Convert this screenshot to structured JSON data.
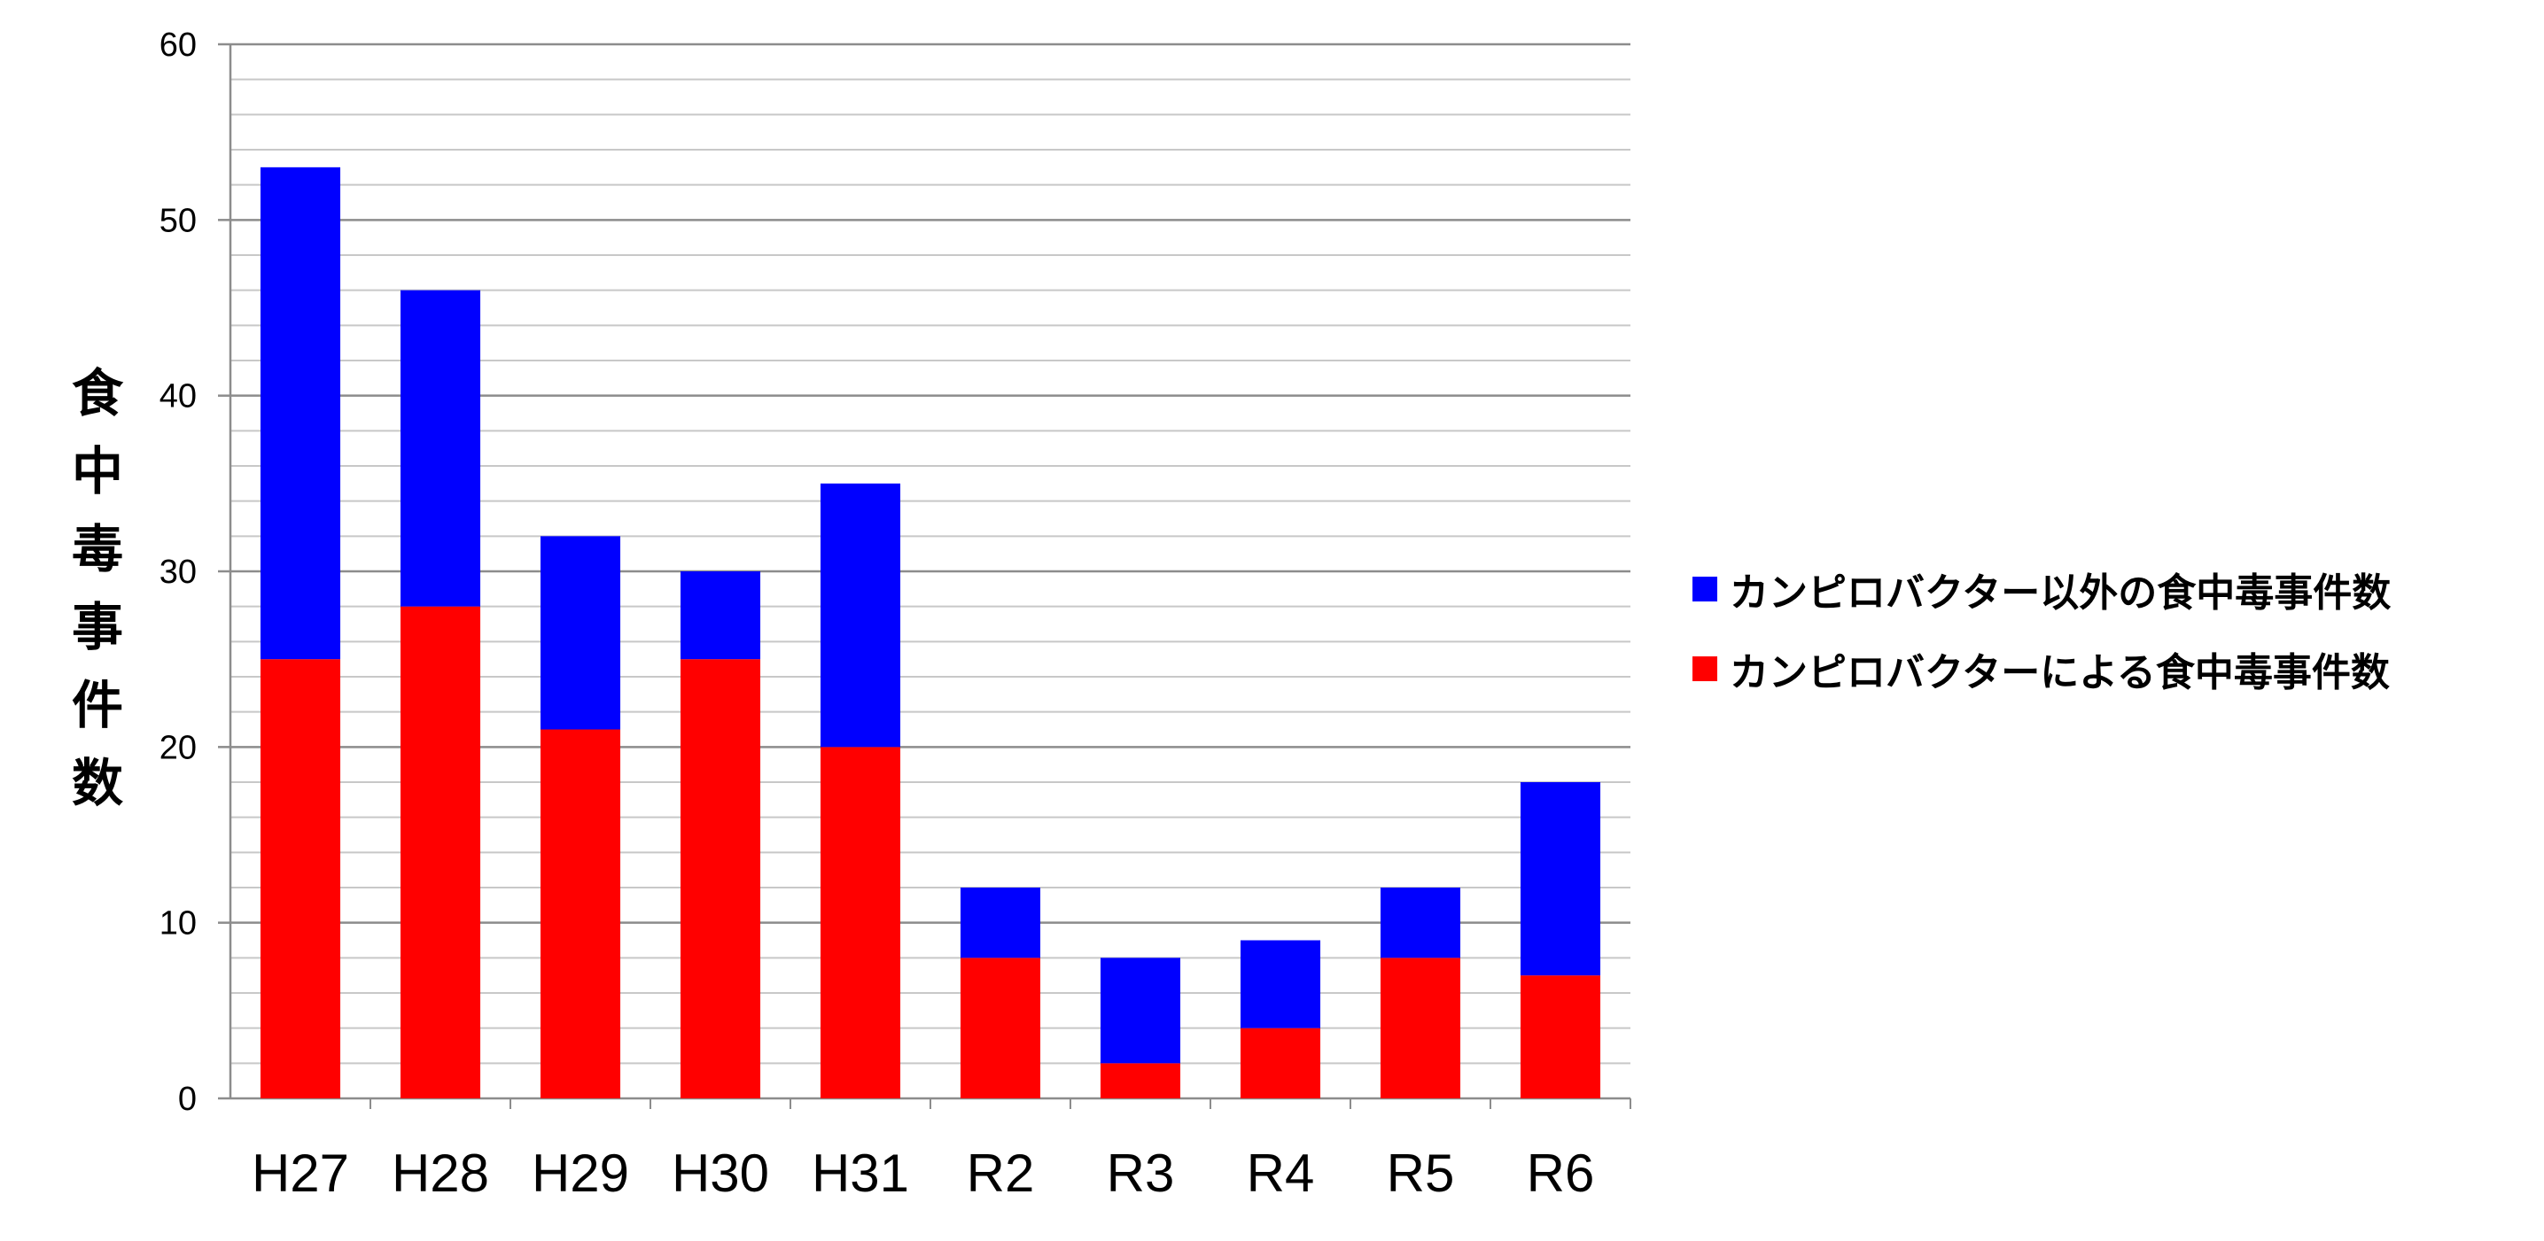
{
  "chart_data": {
    "type": "bar",
    "stacked": true,
    "title": "",
    "xlabel": "",
    "ylabel": "食中毒事件数",
    "categories": [
      "H27",
      "H28",
      "H29",
      "H30",
      "H31",
      "R2",
      "R3",
      "R4",
      "R5",
      "R6"
    ],
    "series": [
      {
        "name": "カンピロバクターによる食中毒事件数",
        "color": "#ff0000",
        "values": [
          25,
          28,
          21,
          25,
          20,
          8,
          2,
          4,
          8,
          7
        ]
      },
      {
        "name": "カンピロバクター以外の食中毒事件数",
        "color": "#0000ff",
        "values": [
          28,
          18,
          11,
          5,
          15,
          4,
          6,
          5,
          4,
          11
        ]
      }
    ],
    "ylim": [
      0,
      60
    ],
    "yticks": [
      0,
      10,
      20,
      30,
      40,
      50,
      60
    ],
    "grid": true,
    "legend_position": "right",
    "legend_order": [
      "カンピロバクター以外の食中毒事件数",
      "カンピロバクターによる食中毒事件数"
    ]
  }
}
